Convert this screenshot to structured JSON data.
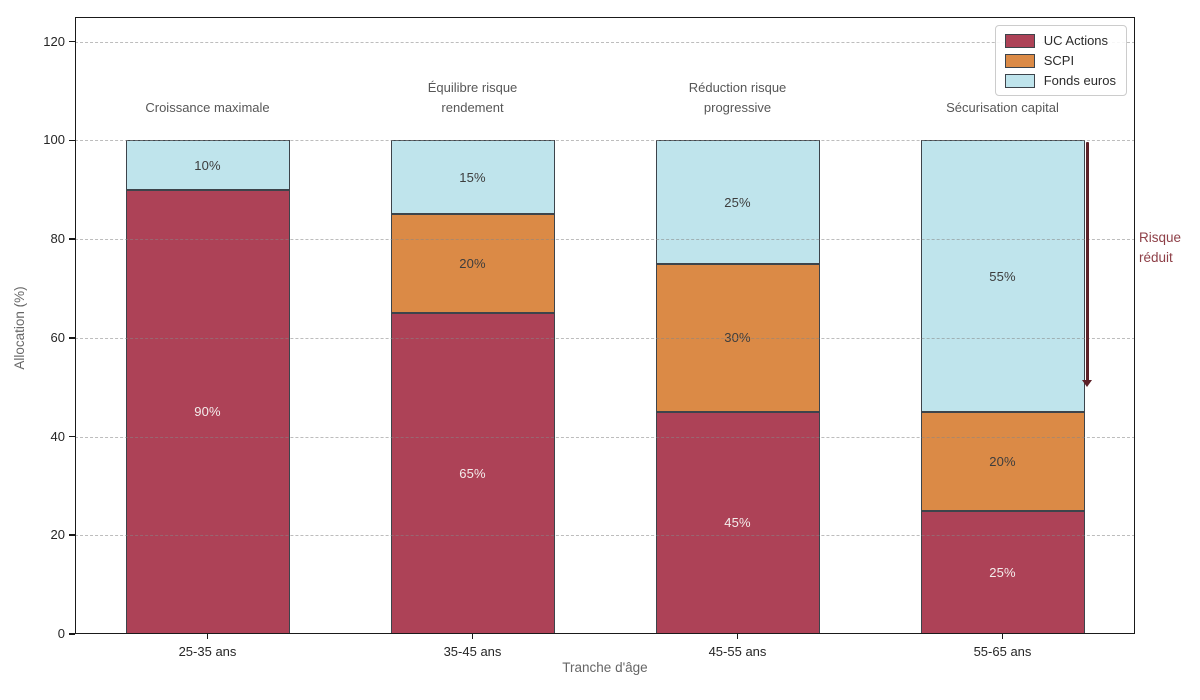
{
  "chart_data": {
    "type": "stacked_bar",
    "xlabel": "Tranche d'âge",
    "ylabel": "Allocation (%)",
    "categories": [
      "25-35 ans",
      "35-45 ans",
      "45-55 ans",
      "55-65 ans"
    ],
    "series": [
      {
        "name": "UC Actions",
        "color": "#AD4257",
        "label_color": "#F4EDEC",
        "values": [
          90,
          65,
          45,
          25
        ]
      },
      {
        "name": "SCPI",
        "color": "#DB8A46",
        "label_color": "#3D3D3D",
        "values": [
          0,
          20,
          30,
          20
        ]
      },
      {
        "name": "Fonds euros",
        "color": "#BFE4EC",
        "label_color": "#3D3D3D",
        "values": [
          10,
          15,
          25,
          55
        ]
      }
    ],
    "segment_label_suffix": "%",
    "bar_annotations": [
      [
        "Croissance maximale"
      ],
      [
        "Équilibre risque",
        "rendement"
      ],
      [
        "Réduction risque",
        "progressive"
      ],
      [
        "Sécurisation capital"
      ]
    ],
    "risk_annotation": {
      "lines": [
        "Risque",
        "réduit"
      ],
      "text_color": "#8E4048",
      "arrow_color": "#5C2128",
      "arrow_from": 100,
      "arrow_to": 50
    },
    "yticks": [
      0,
      20,
      40,
      60,
      80,
      100,
      120
    ],
    "ylim": [
      0,
      125
    ],
    "grid": {
      "axis": "y",
      "style": "dashed",
      "color": "#878787"
    },
    "edge_color": "#3D444B",
    "legend_position": "upper right"
  }
}
